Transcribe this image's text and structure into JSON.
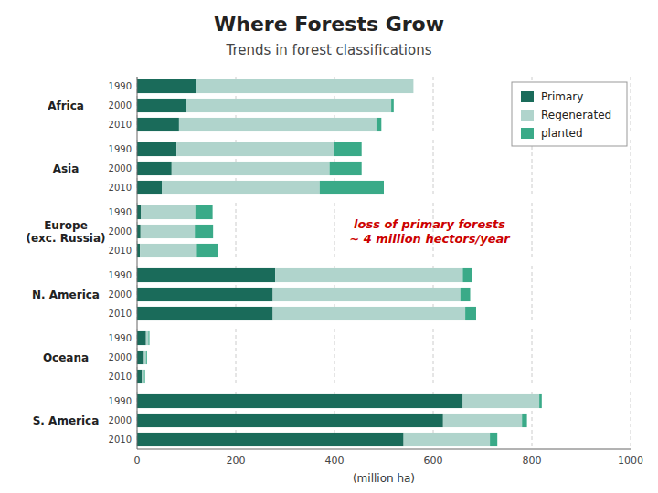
{
  "title": "Where Forests Grow",
  "subtitle": "Trends in forest classifications",
  "xlabel": "(million ha)",
  "annotations": [
    {
      "text": "loss of primary forests\n~ 4 million hectors/year",
      "color": "#cc0000"
    }
  ],
  "chart_data": [
    {
      "type": "bar",
      "orientation": "horizontal",
      "stacked": true,
      "grid": true,
      "legend": "upper right",
      "title": "Africa",
      "categories": [
        "1990",
        "2000",
        "2010"
      ],
      "series": [
        {
          "name": "Primary",
          "color": "#1a6b5a",
          "values": [
            120,
            100,
            85
          ]
        },
        {
          "name": "Regenerated",
          "color": "#b0d4cc",
          "values": [
            440,
            415,
            400
          ]
        },
        {
          "name": "planted",
          "color": "#3aaa88",
          "values": [
            0,
            5,
            10
          ]
        }
      ],
      "xlim": [
        0,
        1000
      ],
      "xticks": [
        0,
        200,
        400,
        600,
        800,
        1000
      ]
    },
    {
      "type": "bar",
      "orientation": "horizontal",
      "stacked": true,
      "grid": true,
      "title": "Asia",
      "categories": [
        "1990",
        "2000",
        "2010"
      ],
      "series": [
        {
          "name": "Primary",
          "color": "#1a6b5a",
          "values": [
            80,
            70,
            50
          ]
        },
        {
          "name": "Regenerated",
          "color": "#b0d4cc",
          "values": [
            320,
            320,
            320
          ]
        },
        {
          "name": "planted",
          "color": "#3aaa88",
          "values": [
            55,
            65,
            130
          ]
        }
      ],
      "xlim": [
        0,
        1000
      ],
      "xticks": [
        0,
        200,
        400,
        600,
        800,
        1000
      ]
    },
    {
      "type": "bar",
      "orientation": "horizontal",
      "stacked": true,
      "grid": true,
      "title": "Europe\n(exc. Russia)",
      "categories": [
        "1990",
        "2000",
        "2010"
      ],
      "series": [
        {
          "name": "Primary",
          "color": "#1a6b5a",
          "values": [
            8,
            7,
            6
          ]
        },
        {
          "name": "Regenerated",
          "color": "#b0d4cc",
          "values": [
            110,
            110,
            115
          ]
        },
        {
          "name": "planted",
          "color": "#3aaa88",
          "values": [
            35,
            37,
            42
          ]
        }
      ],
      "xlim": [
        0,
        1000
      ],
      "xticks": [
        0,
        200,
        400,
        600,
        800,
        1000
      ]
    },
    {
      "type": "bar",
      "orientation": "horizontal",
      "stacked": true,
      "grid": true,
      "title": "N. America",
      "categories": [
        "1990",
        "2000",
        "2010"
      ],
      "series": [
        {
          "name": "Primary",
          "color": "#1a6b5a",
          "values": [
            280,
            275,
            275
          ]
        },
        {
          "name": "Regenerated",
          "color": "#b0d4cc",
          "values": [
            380,
            380,
            390
          ]
        },
        {
          "name": "planted",
          "color": "#3aaa88",
          "values": [
            18,
            20,
            22
          ]
        }
      ],
      "xlim": [
        0,
        1000
      ],
      "xticks": [
        0,
        200,
        400,
        600,
        800,
        1000
      ]
    },
    {
      "type": "bar",
      "orientation": "horizontal",
      "stacked": true,
      "grid": true,
      "title": "Oceana",
      "categories": [
        "1990",
        "2000",
        "2010"
      ],
      "series": [
        {
          "name": "Primary",
          "color": "#1a6b5a",
          "values": [
            18,
            14,
            10
          ]
        },
        {
          "name": "Regenerated",
          "color": "#b0d4cc",
          "values": [
            5,
            4,
            4
          ]
        },
        {
          "name": "planted",
          "color": "#3aaa88",
          "values": [
            2,
            2,
            2
          ]
        }
      ],
      "xlim": [
        0,
        1000
      ],
      "xticks": [
        0,
        200,
        400,
        600,
        800,
        1000
      ]
    },
    {
      "type": "bar",
      "orientation": "horizontal",
      "stacked": true,
      "grid": true,
      "title": "S. America",
      "categories": [
        "1990",
        "2000",
        "2010"
      ],
      "series": [
        {
          "name": "Primary",
          "color": "#1a6b5a",
          "values": [
            660,
            620,
            540
          ]
        },
        {
          "name": "Regenerated",
          "color": "#b0d4cc",
          "values": [
            155,
            160,
            175
          ]
        },
        {
          "name": "planted",
          "color": "#3aaa88",
          "values": [
            5,
            10,
            15
          ]
        }
      ],
      "xlim": [
        0,
        1000
      ],
      "xticks": [
        0,
        200,
        400,
        600,
        800,
        1000
      ]
    }
  ]
}
